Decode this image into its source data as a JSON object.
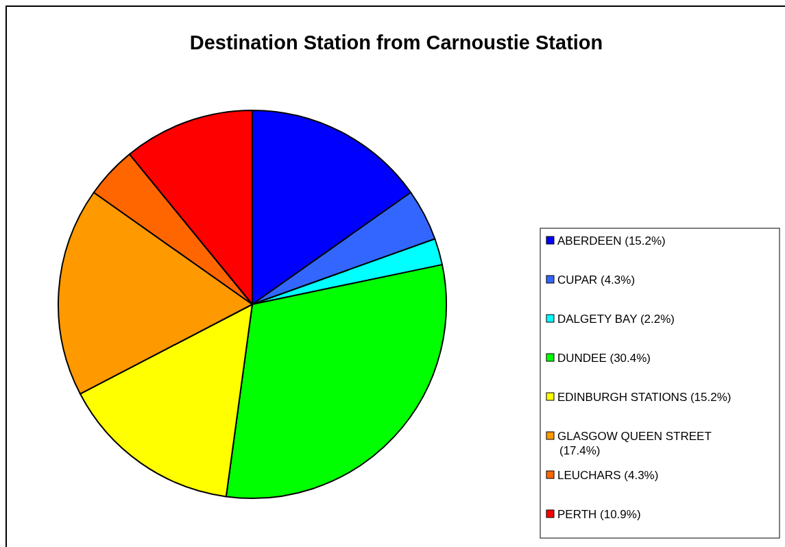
{
  "chart_data": {
    "type": "pie",
    "title": "Destination Station from Carnoustie Station",
    "categories": [
      "ABERDEEN (15.2%)",
      "CUPAR (4.3%)",
      "DALGETY BAY (2.2%)",
      "DUNDEE (30.4%)",
      "EDINBURGH STATIONS (15.2%)",
      "GLASGOW QUEEN STREET (17.4%)",
      "LEUCHARS (4.3%)",
      "PERTH (10.9%)"
    ],
    "values": [
      15.2,
      4.3,
      2.2,
      30.4,
      15.2,
      17.4,
      4.3,
      10.9
    ],
    "colors": [
      "#0000ff",
      "#3366ff",
      "#00ffff",
      "#00ff00",
      "#ffff00",
      "#ff9900",
      "#ff6600",
      "#ff0000"
    ],
    "legend": "right"
  }
}
